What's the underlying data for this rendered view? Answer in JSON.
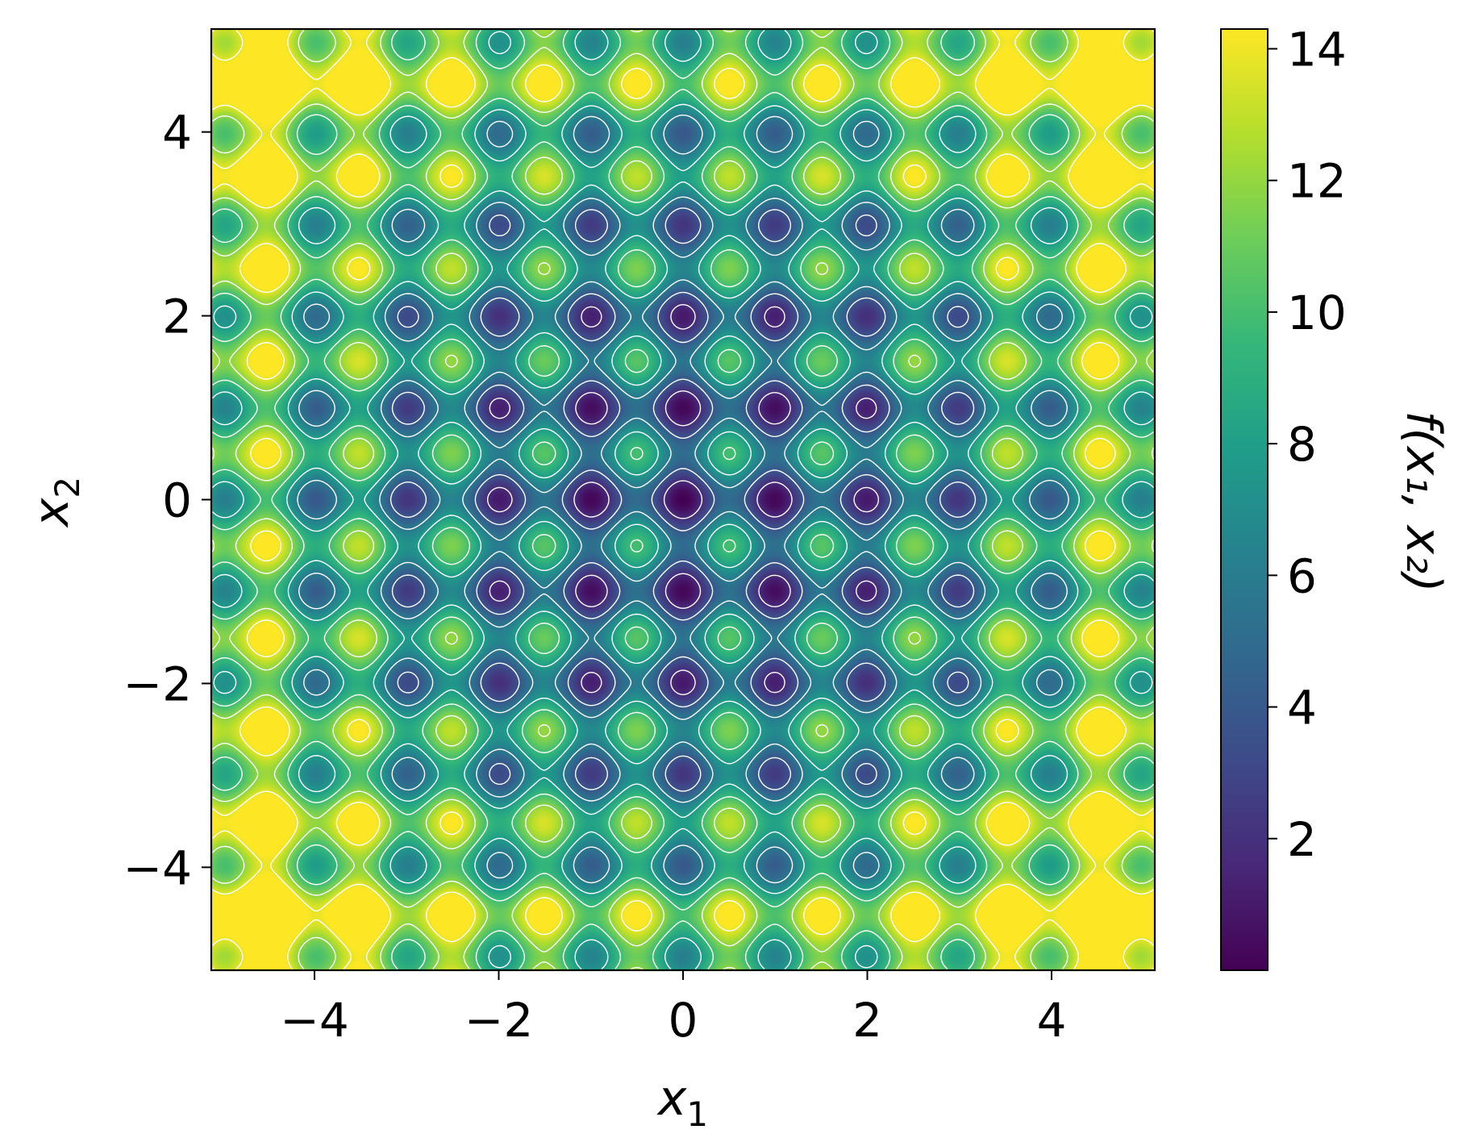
{
  "chart_data": {
    "type": "heatmap",
    "title": "",
    "xlabel": "x",
    "xlabel_sub": "1",
    "ylabel": "x",
    "ylabel_sub": "2",
    "colorbar_label": "f(x₁, x₂)",
    "xlim": [
      -5.12,
      5.12
    ],
    "ylim": [
      -5.12,
      5.12
    ],
    "x_ticks": [
      -4,
      -2,
      0,
      2,
      4
    ],
    "y_ticks": [
      -4,
      -2,
      0,
      2,
      4
    ],
    "x_tick_labels": [
      "−4",
      "−2",
      "0",
      "2",
      "4"
    ],
    "y_tick_labels": [
      "−4",
      "−2",
      "0",
      "2",
      "4"
    ],
    "colorbar_range": [
      0,
      14.3
    ],
    "colorbar_ticks": [
      2,
      4,
      6,
      8,
      10,
      12,
      14
    ],
    "colorbar_tick_labels": [
      "2",
      "4",
      "6",
      "8",
      "10",
      "12",
      "14"
    ],
    "colormap": "viridis",
    "contour_color": "#ffffff",
    "contour_levels": [
      1.8,
      3.8,
      5.8,
      7.8,
      9.8,
      11.8,
      13.8
    ],
    "global_minimum": {
      "x": 0,
      "y": 0,
      "value": 0
    },
    "max_value_approx": 14.3,
    "grid": false
  }
}
